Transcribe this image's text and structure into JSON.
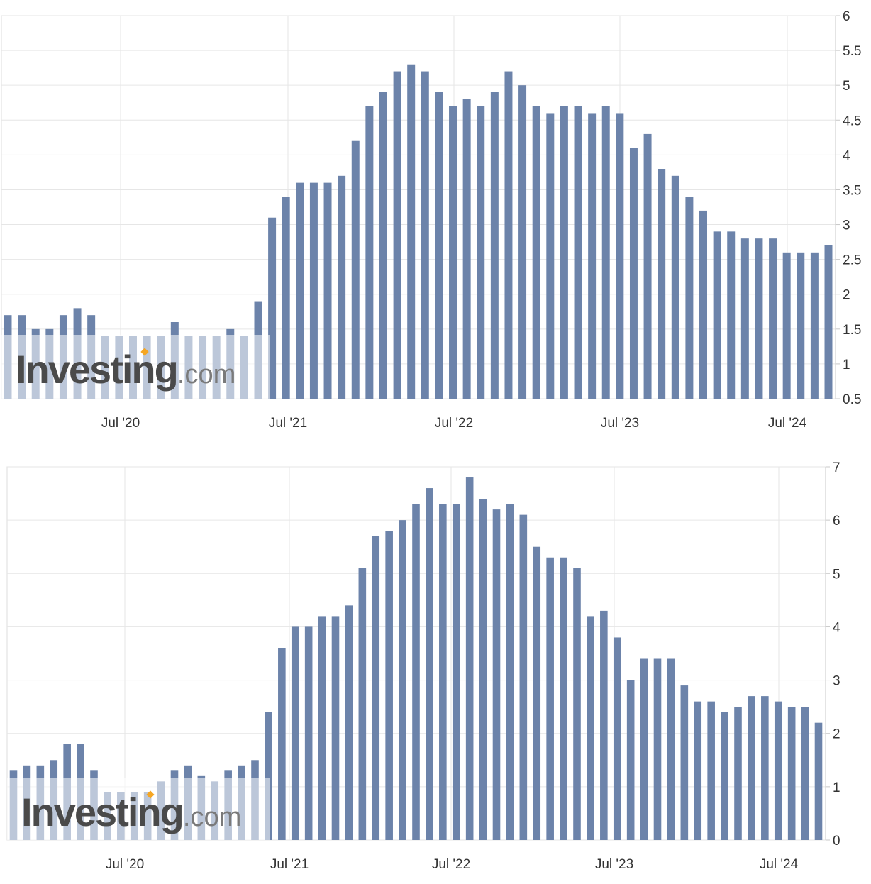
{
  "charts": [
    {
      "id": "top",
      "watermark": {
        "brand": "Investing",
        "suffix": ".com"
      },
      "chart_data": {
        "type": "bar",
        "ylim": [
          0.5,
          6
        ],
        "yticks": [
          "0.5",
          "1",
          "1.5",
          "2",
          "2.5",
          "3",
          "3.5",
          "4",
          "4.5",
          "5",
          "5.5",
          "6"
        ],
        "xticks": [
          "Jul '20",
          "Jul '21",
          "Jul '22",
          "Jul '23",
          "Jul '24"
        ],
        "grid": true,
        "bar_color": "#6c83aa",
        "values": [
          1.7,
          1.7,
          1.5,
          1.5,
          1.7,
          1.8,
          1.7,
          1.4,
          1.4,
          1.4,
          1.4,
          1.4,
          1.6,
          1.4,
          1.4,
          1.4,
          1.5,
          1.4,
          1.9,
          3.1,
          3.4,
          3.6,
          3.6,
          3.6,
          3.7,
          4.2,
          4.7,
          4.9,
          5.2,
          5.3,
          5.2,
          4.9,
          4.7,
          4.8,
          4.7,
          4.9,
          5.2,
          5.0,
          4.7,
          4.6,
          4.7,
          4.7,
          4.6,
          4.7,
          4.6,
          4.1,
          4.3,
          3.8,
          3.7,
          3.4,
          3.2,
          2.9,
          2.9,
          2.8,
          2.8,
          2.8,
          2.6,
          2.6,
          2.6,
          2.7
        ]
      }
    },
    {
      "id": "bottom",
      "watermark": {
        "brand": "Investing",
        "suffix": ".com"
      },
      "chart_data": {
        "type": "bar",
        "ylim": [
          0,
          7
        ],
        "yticks": [
          "0",
          "1",
          "2",
          "3",
          "4",
          "5",
          "6",
          "7"
        ],
        "xticks": [
          "Jul '20",
          "Jul '21",
          "Jul '22",
          "Jul '23",
          "Jul '24"
        ],
        "grid": true,
        "bar_color": "#6c83aa",
        "values": [
          1.3,
          1.4,
          1.4,
          1.5,
          1.8,
          1.8,
          1.3,
          0.9,
          0.9,
          0.9,
          0.9,
          1.1,
          1.3,
          1.4,
          1.2,
          1.1,
          1.3,
          1.4,
          1.5,
          2.4,
          3.6,
          4.0,
          4.0,
          4.2,
          4.2,
          4.4,
          5.1,
          5.7,
          5.8,
          6.0,
          6.3,
          6.6,
          6.3,
          6.3,
          6.8,
          6.4,
          6.2,
          6.3,
          6.1,
          5.5,
          5.3,
          5.3,
          5.1,
          4.2,
          4.3,
          3.8,
          3.0,
          3.4,
          3.4,
          3.4,
          2.9,
          2.6,
          2.6,
          2.4,
          2.5,
          2.7,
          2.7,
          2.6,
          2.5,
          2.5,
          2.2
        ]
      }
    }
  ]
}
